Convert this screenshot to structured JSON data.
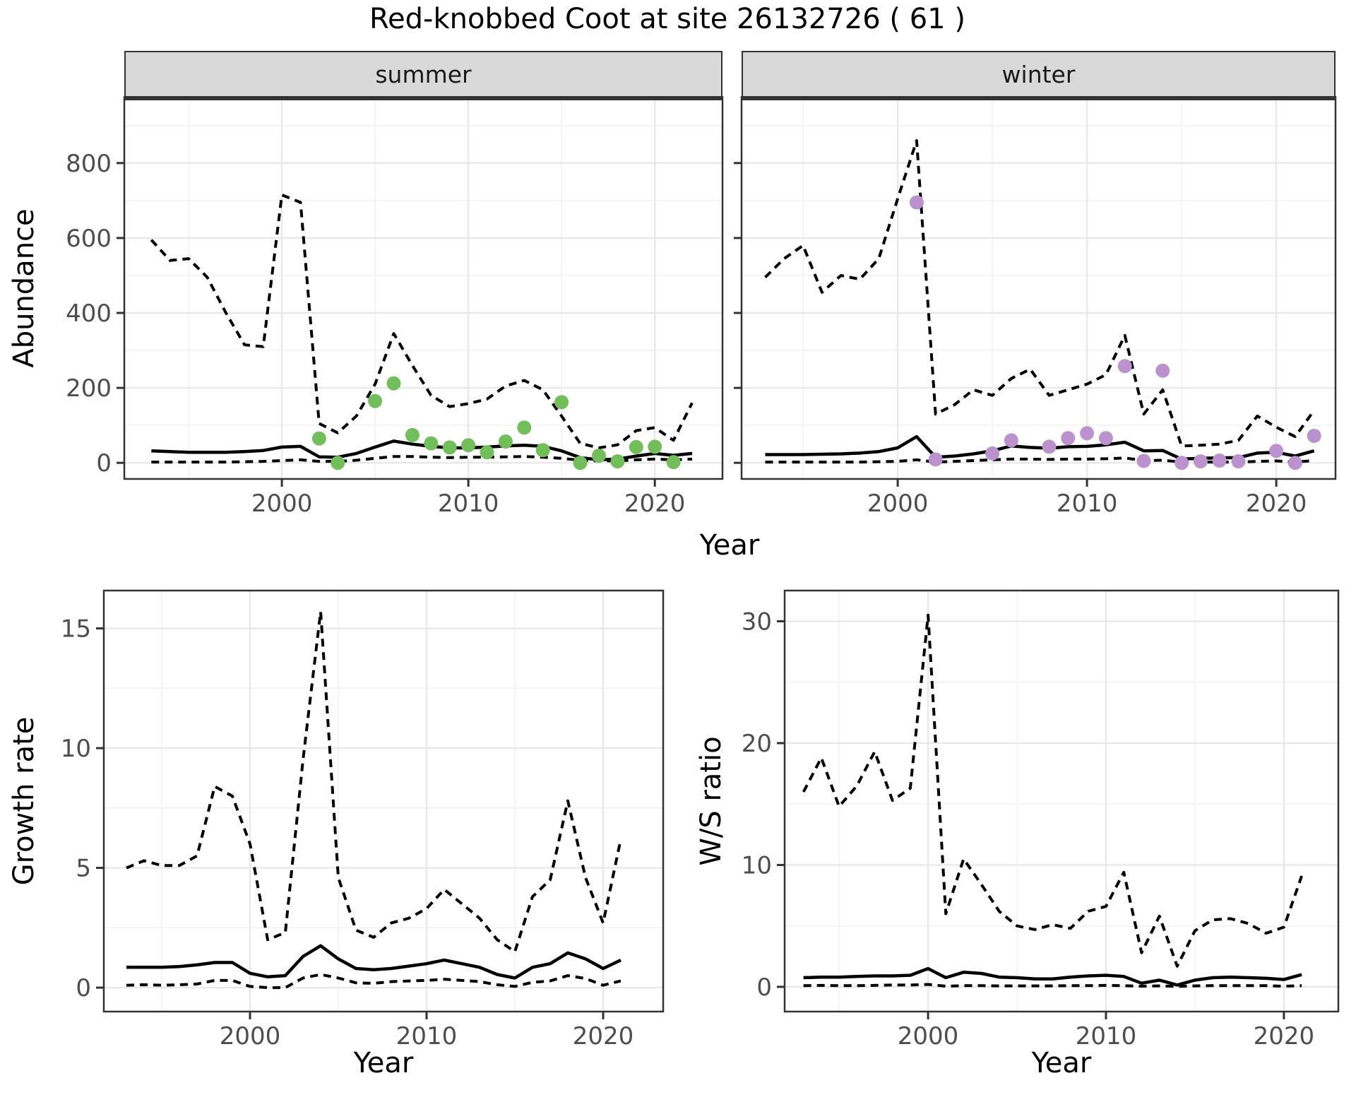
{
  "title": "Red-knobbed Coot at site 26132726 ( 61 )",
  "axis_titles": {
    "abundance": "Abundance",
    "growth_rate": "Growth rate",
    "ws_ratio": "W/S ratio",
    "year": "Year"
  },
  "colors": {
    "summer_points": "#72BE5A",
    "winter_points": "#BB92CD",
    "line": "#000000",
    "strip_bg": "#D9D9D9",
    "strip_text": "#1A1A1A",
    "panel_border": "#333333",
    "grid_major": "#E8E8E8",
    "grid_minor": "#F2F2F2",
    "tick_text": "#4D4D4D"
  },
  "chart_data": [
    {
      "id": "abundance-summer",
      "type": "line",
      "facet_label": "summer",
      "xlabel": "Year",
      "ylabel": "Abundance",
      "x_ticks": [
        2000,
        2010,
        2020
      ],
      "x_minor": [
        1995,
        2005,
        2015
      ],
      "y_ticks": [
        0,
        200,
        400,
        600,
        800
      ],
      "y_minor": [
        100,
        300,
        500,
        700,
        900
      ],
      "xlim": [
        1991.55,
        2023.63
      ],
      "ylim": [
        -43,
        975
      ],
      "grid": true,
      "legend": "none",
      "years": [
        1993,
        1994,
        1995,
        1996,
        1997,
        1998,
        1999,
        2000,
        2001,
        2002,
        2003,
        2004,
        2005,
        2006,
        2007,
        2008,
        2009,
        2010,
        2011,
        2012,
        2013,
        2014,
        2015,
        2016,
        2017,
        2018,
        2019,
        2020,
        2021,
        2022
      ],
      "series": [
        {
          "name": "upper_ci",
          "style": "dashed",
          "values": [
            595,
            540,
            545,
            495,
            400,
            315,
            310,
            715,
            695,
            105,
            80,
            125,
            210,
            345,
            260,
            180,
            150,
            158,
            170,
            205,
            220,
            195,
            125,
            52,
            40,
            48,
            86,
            94,
            60,
            160
          ]
        },
        {
          "name": "median",
          "style": "solid",
          "values": [
            32,
            30,
            28,
            28,
            28,
            30,
            33,
            42,
            44,
            16,
            15,
            25,
            42,
            58,
            50,
            44,
            40,
            40,
            42,
            45,
            47,
            44,
            32,
            14,
            8,
            10,
            18,
            25,
            20,
            25
          ]
        },
        {
          "name": "lower_ci",
          "style": "dashed",
          "values": [
            2,
            2,
            2,
            2,
            2,
            3,
            4,
            6,
            8,
            4,
            4,
            7,
            12,
            17,
            17,
            15,
            14,
            15,
            15,
            16,
            17,
            15,
            12,
            7,
            5,
            5,
            8,
            10,
            8,
            10
          ]
        }
      ],
      "points": {
        "name": "observed_counts_summer",
        "color_key": "summer_points",
        "data": [
          [
            2002,
            65
          ],
          [
            2003,
            0
          ],
          [
            2005,
            165
          ],
          [
            2006,
            212
          ],
          [
            2007,
            74
          ],
          [
            2008,
            52
          ],
          [
            2009,
            41
          ],
          [
            2010,
            47
          ],
          [
            2011,
            28
          ],
          [
            2012,
            57
          ],
          [
            2013,
            94
          ],
          [
            2014,
            34
          ],
          [
            2015,
            162
          ],
          [
            2016,
            0
          ],
          [
            2017,
            19
          ],
          [
            2018,
            4
          ],
          [
            2019,
            42
          ],
          [
            2020,
            43
          ],
          [
            2021,
            2
          ]
        ]
      }
    },
    {
      "id": "abundance-winter",
      "type": "line",
      "facet_label": "winter",
      "xlabel": "Year",
      "ylabel": "Abundance",
      "x_ticks": [
        2000,
        2010,
        2020
      ],
      "x_minor": [
        1995,
        2005,
        2015
      ],
      "y_ticks": [
        0,
        200,
        400,
        600,
        800
      ],
      "y_minor": [
        100,
        300,
        500,
        700,
        900
      ],
      "xlim": [
        1991.75,
        2023.13
      ],
      "ylim": [
        -43,
        975
      ],
      "grid": true,
      "legend": "none",
      "years": [
        1993,
        1994,
        1995,
        1996,
        1997,
        1998,
        1999,
        2000,
        2001,
        2002,
        2003,
        2004,
        2005,
        2006,
        2007,
        2008,
        2009,
        2010,
        2011,
        2012,
        2013,
        2014,
        2015,
        2016,
        2017,
        2018,
        2019,
        2020,
        2021,
        2022
      ],
      "series": [
        {
          "name": "upper_ci",
          "style": "dashed",
          "values": [
            495,
            545,
            580,
            455,
            500,
            490,
            545,
            705,
            860,
            130,
            155,
            195,
            180,
            225,
            250,
            180,
            195,
            210,
            235,
            340,
            130,
            195,
            45,
            47,
            50,
            60,
            125,
            95,
            70,
            140
          ]
        },
        {
          "name": "median",
          "style": "solid",
          "values": [
            22,
            22,
            22,
            23,
            24,
            26,
            30,
            40,
            70,
            15,
            18,
            24,
            32,
            45,
            41,
            39,
            43,
            44,
            48,
            55,
            32,
            33,
            10,
            12,
            13,
            14,
            26,
            28,
            18,
            32
          ]
        },
        {
          "name": "lower_ci",
          "style": "dashed",
          "values": [
            2,
            2,
            2,
            2,
            2,
            2,
            3,
            4,
            8,
            2,
            4,
            6,
            8,
            10,
            10,
            9,
            10,
            10,
            11,
            13,
            6,
            7,
            2,
            2,
            2,
            2,
            4,
            5,
            2,
            6
          ]
        }
      ],
      "points": {
        "name": "observed_counts_winter",
        "color_key": "winter_points",
        "data": [
          [
            2001,
            695
          ],
          [
            2002,
            9
          ],
          [
            2005,
            25
          ],
          [
            2006,
            60
          ],
          [
            2008,
            43
          ],
          [
            2009,
            66
          ],
          [
            2010,
            79
          ],
          [
            2011,
            66
          ],
          [
            2012,
            258
          ],
          [
            2013,
            5
          ],
          [
            2014,
            246
          ],
          [
            2015,
            0
          ],
          [
            2016,
            4
          ],
          [
            2017,
            6
          ],
          [
            2018,
            4
          ],
          [
            2020,
            32
          ],
          [
            2021,
            0
          ],
          [
            2022,
            72
          ]
        ]
      }
    },
    {
      "id": "growth-rate",
      "type": "line",
      "facet_label": null,
      "xlabel": "Year",
      "ylabel": "Growth rate",
      "x_ticks": [
        2000,
        2010,
        2020
      ],
      "x_minor": [
        1995,
        2005,
        2015
      ],
      "y_ticks": [
        0,
        5,
        10,
        15
      ],
      "y_minor": [
        2.5,
        7.5,
        12.5
      ],
      "xlim": [
        1991.72,
        2023.4
      ],
      "ylim": [
        -1.0,
        16.58
      ],
      "grid": true,
      "legend": "none",
      "years": [
        1993,
        1994,
        1995,
        1996,
        1997,
        1998,
        1999,
        2000,
        2001,
        2002,
        2003,
        2004,
        2005,
        2006,
        2007,
        2008,
        2009,
        2010,
        2011,
        2012,
        2013,
        2014,
        2015,
        2016,
        2017,
        2018,
        2019,
        2020,
        2021
      ],
      "series": [
        {
          "name": "upper_ci",
          "style": "dashed",
          "values": [
            5.0,
            5.3,
            5.1,
            5.1,
            5.5,
            8.4,
            8.0,
            6.0,
            2.0,
            2.3,
            9.5,
            15.7,
            4.6,
            2.4,
            2.1,
            2.7,
            2.9,
            3.3,
            4.1,
            3.5,
            2.9,
            2.0,
            1.5,
            3.8,
            4.5,
            7.8,
            4.6,
            2.7,
            6.2
          ]
        },
        {
          "name": "median",
          "style": "solid",
          "values": [
            0.85,
            0.85,
            0.85,
            0.88,
            0.95,
            1.05,
            1.05,
            0.6,
            0.45,
            0.5,
            1.3,
            1.75,
            1.2,
            0.8,
            0.75,
            0.8,
            0.9,
            1.0,
            1.15,
            1.0,
            0.85,
            0.55,
            0.4,
            0.85,
            1.0,
            1.45,
            1.2,
            0.8,
            1.15
          ]
        },
        {
          "name": "lower_ci",
          "style": "dashed",
          "values": [
            0.1,
            0.12,
            0.1,
            0.12,
            0.15,
            0.3,
            0.3,
            0.05,
            0.0,
            0.0,
            0.4,
            0.55,
            0.4,
            0.2,
            0.18,
            0.25,
            0.28,
            0.3,
            0.35,
            0.3,
            0.25,
            0.12,
            0.05,
            0.22,
            0.28,
            0.5,
            0.38,
            0.1,
            0.28
          ]
        }
      ],
      "points": null
    },
    {
      "id": "ws-ratio",
      "type": "line",
      "facet_label": null,
      "xlabel": "Year",
      "ylabel": "W/S ratio",
      "x_ticks": [
        2000,
        2010,
        2020
      ],
      "x_minor": [
        1995,
        2005,
        2015
      ],
      "y_ticks": [
        0,
        10,
        20,
        30
      ],
      "y_minor": [
        5,
        15,
        25
      ],
      "xlim": [
        1991.94,
        2023.06
      ],
      "ylim": [
        -2.03,
        32.52
      ],
      "grid": true,
      "legend": "none",
      "years": [
        1993,
        1994,
        1995,
        1996,
        1997,
        1998,
        1999,
        2000,
        2001,
        2002,
        2003,
        2004,
        2005,
        2006,
        2007,
        2008,
        2009,
        2010,
        2011,
        2012,
        2013,
        2014,
        2015,
        2016,
        2017,
        2018,
        2019,
        2020,
        2021
      ],
      "series": [
        {
          "name": "upper_ci",
          "style": "dashed",
          "values": [
            16.0,
            18.8,
            14.8,
            16.5,
            19.3,
            15.3,
            16.3,
            30.5,
            6.0,
            10.5,
            8.4,
            6.2,
            5.0,
            4.7,
            5.1,
            4.8,
            6.2,
            6.6,
            9.4,
            2.8,
            5.8,
            1.7,
            4.6,
            5.5,
            5.6,
            5.2,
            4.4,
            4.9,
            9.1
          ]
        },
        {
          "name": "median",
          "style": "solid",
          "values": [
            0.75,
            0.8,
            0.8,
            0.85,
            0.9,
            0.9,
            0.95,
            1.5,
            0.75,
            1.2,
            1.1,
            0.8,
            0.75,
            0.65,
            0.65,
            0.8,
            0.9,
            0.95,
            0.85,
            0.3,
            0.55,
            0.15,
            0.55,
            0.75,
            0.8,
            0.75,
            0.7,
            0.6,
            1.0
          ]
        },
        {
          "name": "lower_ci",
          "style": "dashed",
          "values": [
            0.1,
            0.12,
            0.1,
            0.1,
            0.12,
            0.15,
            0.15,
            0.2,
            0.05,
            0.1,
            0.1,
            0.08,
            0.08,
            0.08,
            0.08,
            0.1,
            0.1,
            0.12,
            0.1,
            0.05,
            0.08,
            0.03,
            0.08,
            0.1,
            0.1,
            0.1,
            0.1,
            0.05,
            0.1
          ]
        }
      ],
      "points": null
    }
  ]
}
